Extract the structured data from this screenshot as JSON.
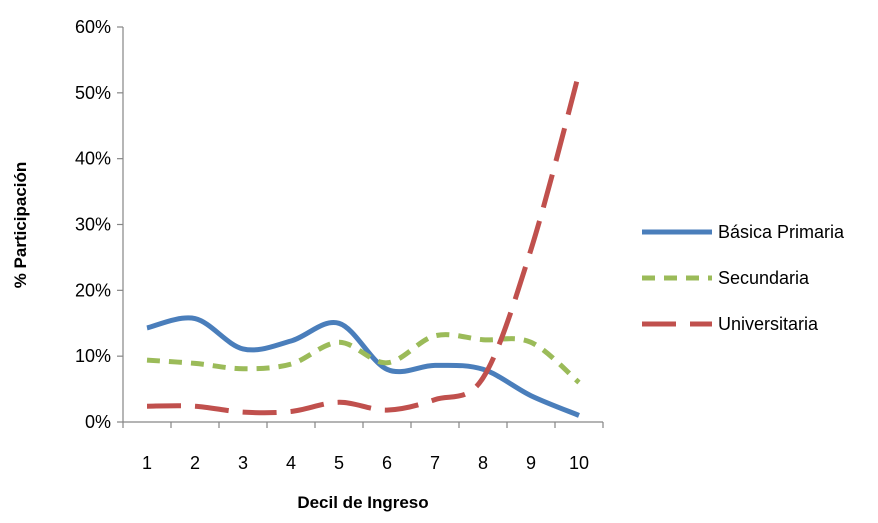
{
  "chart_data": {
    "type": "line",
    "xlabel": "Decil de Ingreso",
    "ylabel": "% Participación",
    "x": [
      1,
      2,
      3,
      4,
      5,
      6,
      7,
      8,
      9,
      10
    ],
    "x_tick_labels": [
      "1",
      "2",
      "3",
      "4",
      "5",
      "6",
      "7",
      "8",
      "9",
      "10"
    ],
    "y_tick_labels": [
      "0%",
      "10%",
      "20%",
      "30%",
      "40%",
      "50%",
      "60%"
    ],
    "ylim": [
      0,
      0.6
    ],
    "grid": false,
    "legend_position": "right",
    "series": [
      {
        "name": "Básica Primaria",
        "style": "solid",
        "color": "#4A7EBB",
        "values": [
          0.143,
          0.157,
          0.111,
          0.123,
          0.15,
          0.08,
          0.086,
          0.08,
          0.04,
          0.01
        ]
      },
      {
        "name": "Secundaria",
        "style": "short-dash",
        "color": "#9BBB59",
        "values": [
          0.094,
          0.089,
          0.081,
          0.088,
          0.121,
          0.09,
          0.131,
          0.125,
          0.121,
          0.06
        ]
      },
      {
        "name": "Universitaria",
        "style": "long-dash",
        "color": "#C0504D",
        "values": [
          0.024,
          0.024,
          0.015,
          0.016,
          0.03,
          0.018,
          0.034,
          0.067,
          0.262,
          0.53
        ]
      }
    ]
  }
}
